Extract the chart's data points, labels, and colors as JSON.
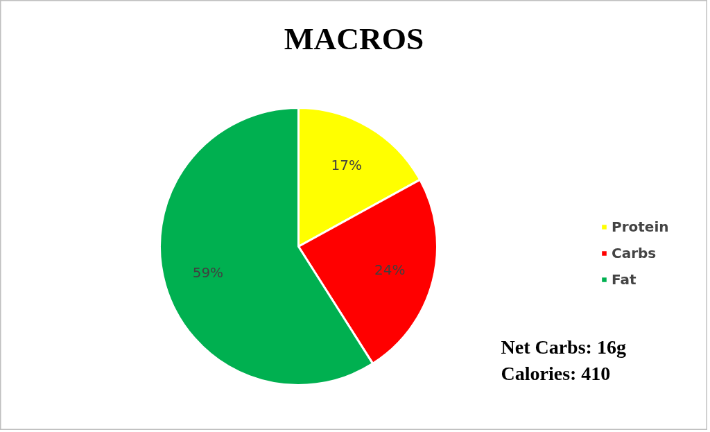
{
  "chart_data": {
    "type": "pie",
    "title": "MACROS",
    "categories": [
      "Protein",
      "Carbs",
      "Fat"
    ],
    "values": [
      17,
      24,
      59
    ],
    "colors": [
      "#ffff00",
      "#ff0000",
      "#00b050"
    ],
    "value_labels": [
      "17%",
      "24%",
      "59%"
    ],
    "legend": "right",
    "annotations": [
      "Net Carbs: 16g",
      "Calories: 410"
    ]
  }
}
